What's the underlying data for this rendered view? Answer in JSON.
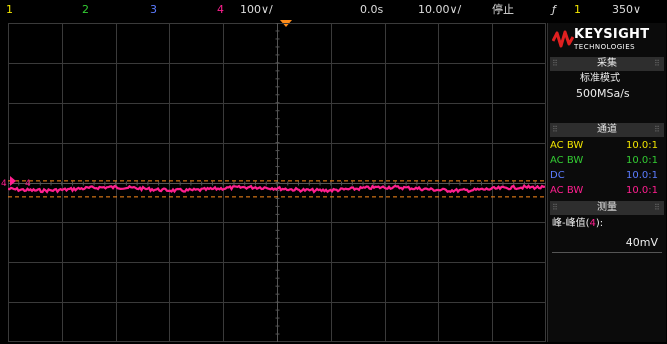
{
  "colors": {
    "ch1": "#f2e600",
    "ch2": "#33cc33",
    "ch3": "#5c7cff",
    "ch4": "#ff1f8f",
    "trigger": "#ff8c1a",
    "grid": "#3a3a3a"
  },
  "top_bar": {
    "ch1": "1",
    "ch2": "2",
    "ch3": "3",
    "ch4": "4",
    "vertical_scale": "100∨/",
    "time_offset": "0.0s",
    "time_scale": "10.00∨/",
    "run_state": "停止",
    "trigger_icon": "ƒ",
    "trigger_source": "1",
    "trigger_level": "350∨"
  },
  "scope": {
    "ch4_marker_left": "4",
    "ch4_marker_right": "4",
    "trace_level": 0.52,
    "cursor_band_top": 0.495,
    "cursor_band_bottom": 0.545
  },
  "side_panel": {
    "brand": "KEYSIGHT",
    "brand_sub": "TECHNOLOGIES",
    "acquire": {
      "header": "采集",
      "mode": "标准模式",
      "rate": "500MSa/s"
    },
    "channels": {
      "header": "通道",
      "rows": [
        {
          "coupling": "AC BW",
          "probe": "10.0:1",
          "color": "#f2e600"
        },
        {
          "coupling": "AC BW",
          "probe": "10.0:1",
          "color": "#33cc33"
        },
        {
          "coupling": "DC",
          "probe": "10.0:1",
          "color": "#5c7cff"
        },
        {
          "coupling": "AC BW",
          "probe": "10.0:1",
          "color": "#ff1f8f"
        }
      ]
    },
    "measure": {
      "header": "测量",
      "label_prefix": "峰-峰值(",
      "label_ch": "4",
      "label_suffix": "):",
      "value": "40mV"
    }
  }
}
